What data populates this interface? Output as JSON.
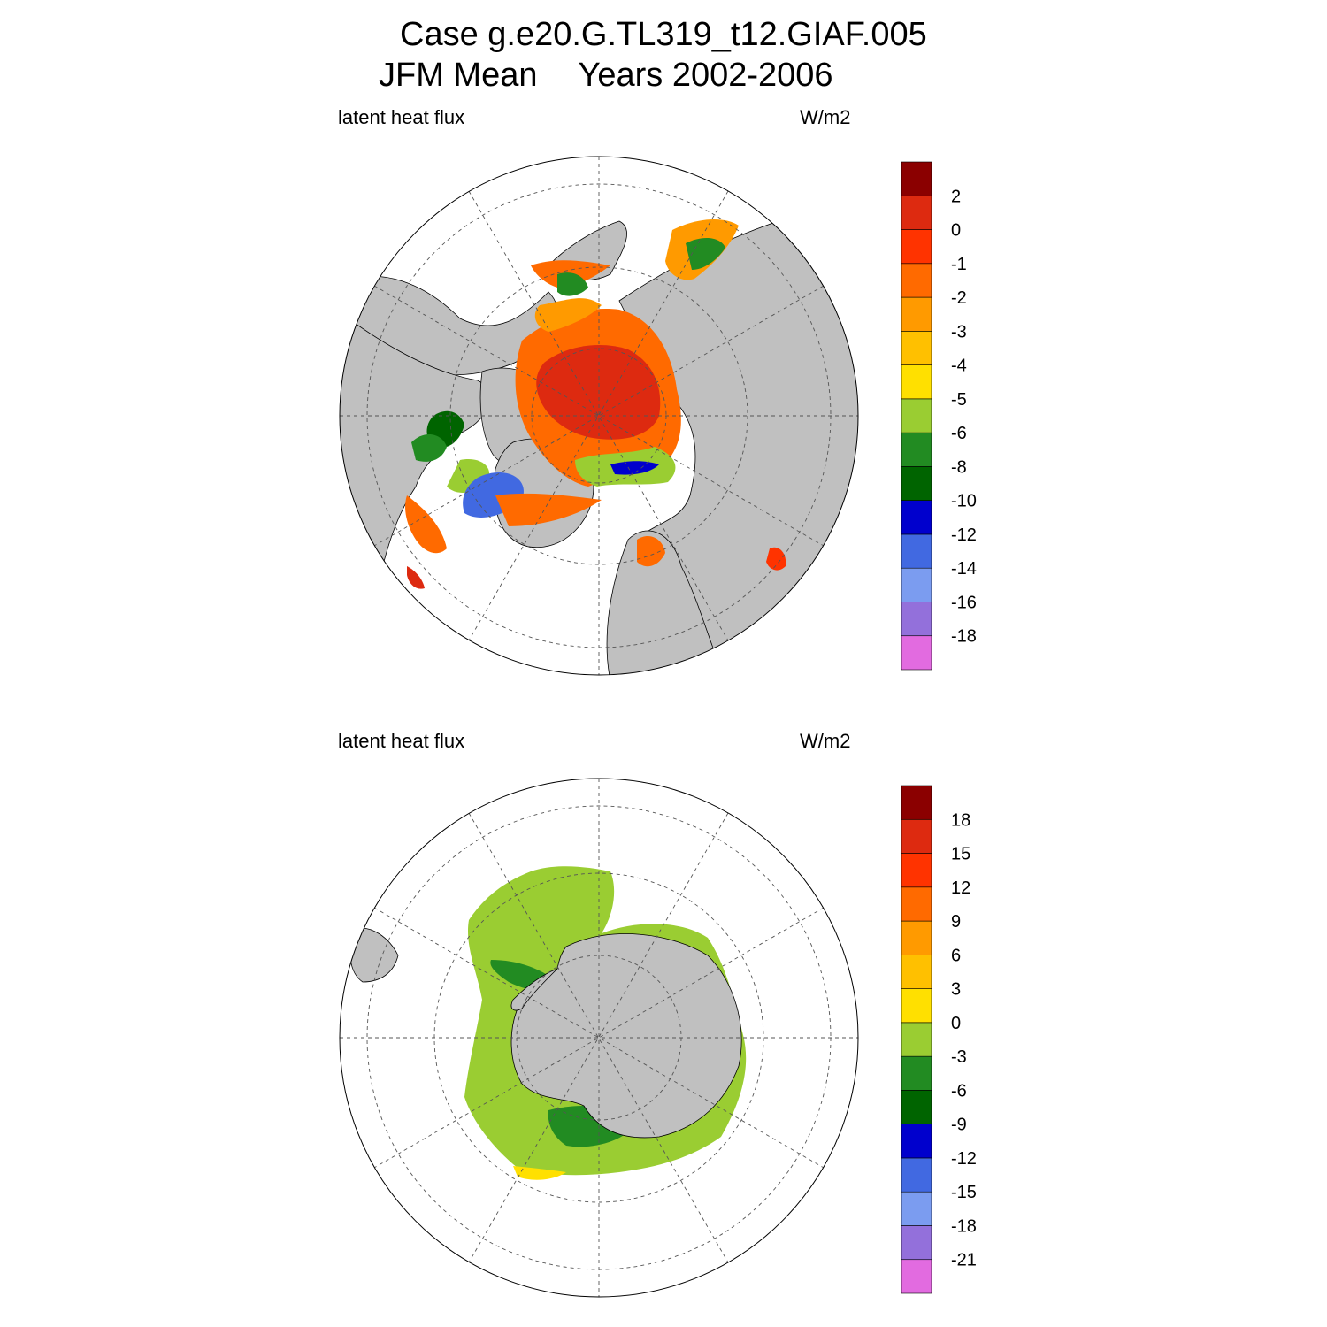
{
  "title": {
    "line1": "Case g.e20.G.TL319_t12.GIAF.005",
    "season": "JFM Mean",
    "years": "Years 2002-2006"
  },
  "panels": [
    {
      "hemisphere": "north",
      "left_label": "latent heat flux",
      "right_label": "W/m2",
      "colorbar": {
        "colors": [
          "#e26be0",
          "#9370db",
          "#7b9cf0",
          "#4169e1",
          "#0000cd",
          "#006400",
          "#228b22",
          "#9acd32",
          "#ffe000",
          "#ffc000",
          "#ff9a00",
          "#ff6a00",
          "#ff3300",
          "#dd2a10",
          "#8b0000"
        ],
        "labels": [
          "-18",
          "-16",
          "-14",
          "-12",
          "-10",
          "-8",
          "-6",
          "-5",
          "-4",
          "-3",
          "-2",
          "-1",
          "0",
          "2"
        ]
      }
    },
    {
      "hemisphere": "south",
      "left_label": "latent heat flux",
      "right_label": "W/m2",
      "colorbar": {
        "colors": [
          "#e26be0",
          "#9370db",
          "#7b9cf0",
          "#4169e1",
          "#0000cd",
          "#006400",
          "#228b22",
          "#9acd32",
          "#ffe000",
          "#ffc000",
          "#ff9a00",
          "#ff6a00",
          "#ff3300",
          "#dd2a10",
          "#8b0000"
        ],
        "labels": [
          "-21",
          "-18",
          "-15",
          "-12",
          "-9",
          "-6",
          "-3",
          "0",
          "3",
          "6",
          "9",
          "12",
          "15",
          "18"
        ]
      }
    }
  ]
}
